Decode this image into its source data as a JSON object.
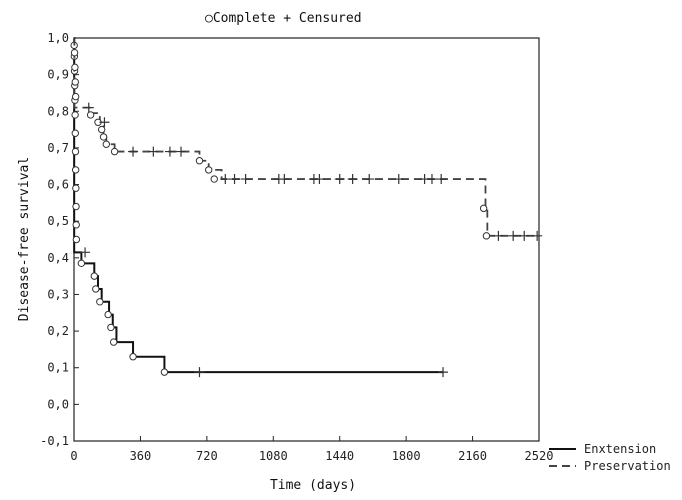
{
  "chart_data": {
    "type": "line",
    "title": "Complete + Censured",
    "title_marker": "○",
    "xlabel": "Time (days)",
    "ylabel": "Disease-free survival",
    "xlim": [
      0,
      2520
    ],
    "ylim": [
      -0.1,
      1.0
    ],
    "x_ticks": [
      0,
      360,
      720,
      1080,
      1440,
      1800,
      2160,
      2520
    ],
    "y_ticks": [
      1.0,
      0.9,
      0.8,
      0.7,
      0.6,
      0.5,
      0.4,
      0.3,
      0.2,
      0.1,
      0.0,
      -0.1
    ],
    "x_tick_labels": [
      "0",
      "360",
      "720",
      "1080",
      "1440",
      "1800",
      "2160",
      "2520"
    ],
    "y_tick_labels": [
      "1,0",
      "0,9",
      "0,8",
      "0,7",
      "0,6",
      "0,5",
      "0,4",
      "0,3",
      "0,2",
      "0,1",
      "0,0",
      "-0,1"
    ],
    "grid": false,
    "legend_position": "bottom-right-outside",
    "series": [
      {
        "name": "Enxtension",
        "style": "solid",
        "color": "#111111",
        "steps": [
          [
            0,
            1.0
          ],
          [
            1,
            0.415
          ],
          [
            40,
            0.385
          ],
          [
            110,
            0.35
          ],
          [
            130,
            0.315
          ],
          [
            150,
            0.28
          ],
          [
            190,
            0.245
          ],
          [
            210,
            0.21
          ],
          [
            230,
            0.17
          ],
          [
            320,
            0.13
          ],
          [
            490,
            0.088
          ]
        ],
        "end": 2000,
        "events": [
          [
            1,
            0.98
          ],
          [
            2,
            0.95
          ],
          [
            3,
            0.91
          ],
          [
            4,
            0.87
          ],
          [
            5,
            0.83
          ],
          [
            6,
            0.79
          ],
          [
            7,
            0.74
          ],
          [
            8,
            0.69
          ],
          [
            9,
            0.64
          ],
          [
            10,
            0.59
          ],
          [
            11,
            0.54
          ],
          [
            12,
            0.49
          ],
          [
            13,
            0.45
          ],
          [
            40,
            0.385
          ],
          [
            110,
            0.35
          ],
          [
            118,
            0.315
          ],
          [
            140,
            0.28
          ],
          [
            185,
            0.245
          ],
          [
            200,
            0.21
          ],
          [
            215,
            0.17
          ],
          [
            320,
            0.13
          ],
          [
            490,
            0.088
          ]
        ],
        "censored": [
          [
            60,
            0.415
          ],
          [
            680,
            0.088
          ],
          [
            2000,
            0.088
          ]
        ]
      },
      {
        "name": "Preservation",
        "style": "dashed",
        "color": "#444444",
        "steps": [
          [
            0,
            1.0
          ],
          [
            2,
            0.81
          ],
          [
            90,
            0.795
          ],
          [
            140,
            0.77
          ],
          [
            160,
            0.74
          ],
          [
            175,
            0.71
          ],
          [
            220,
            0.69
          ],
          [
            680,
            0.665
          ],
          [
            730,
            0.64
          ],
          [
            800,
            0.615
          ],
          [
            2230,
            0.535
          ],
          [
            2240,
            0.46
          ]
        ],
        "end": 2520,
        "events": [
          [
            3,
            0.96
          ],
          [
            5,
            0.92
          ],
          [
            7,
            0.88
          ],
          [
            9,
            0.84
          ],
          [
            90,
            0.79
          ],
          [
            130,
            0.77
          ],
          [
            150,
            0.75
          ],
          [
            160,
            0.73
          ],
          [
            175,
            0.71
          ],
          [
            220,
            0.69
          ],
          [
            680,
            0.665
          ],
          [
            730,
            0.64
          ],
          [
            760,
            0.615
          ],
          [
            2220,
            0.535
          ],
          [
            2235,
            0.46
          ]
        ],
        "censored": [
          [
            80,
            0.81
          ],
          [
            165,
            0.77
          ],
          [
            320,
            0.69
          ],
          [
            430,
            0.69
          ],
          [
            520,
            0.69
          ],
          [
            580,
            0.69
          ],
          [
            820,
            0.615
          ],
          [
            870,
            0.615
          ],
          [
            930,
            0.615
          ],
          [
            1110,
            0.615
          ],
          [
            1140,
            0.615
          ],
          [
            1300,
            0.615
          ],
          [
            1330,
            0.615
          ],
          [
            1440,
            0.615
          ],
          [
            1510,
            0.615
          ],
          [
            1600,
            0.615
          ],
          [
            1760,
            0.615
          ],
          [
            1900,
            0.615
          ],
          [
            1940,
            0.615
          ],
          [
            1990,
            0.615
          ],
          [
            2300,
            0.46
          ],
          [
            2380,
            0.46
          ],
          [
            2440,
            0.46
          ],
          [
            2510,
            0.46
          ]
        ]
      }
    ]
  }
}
